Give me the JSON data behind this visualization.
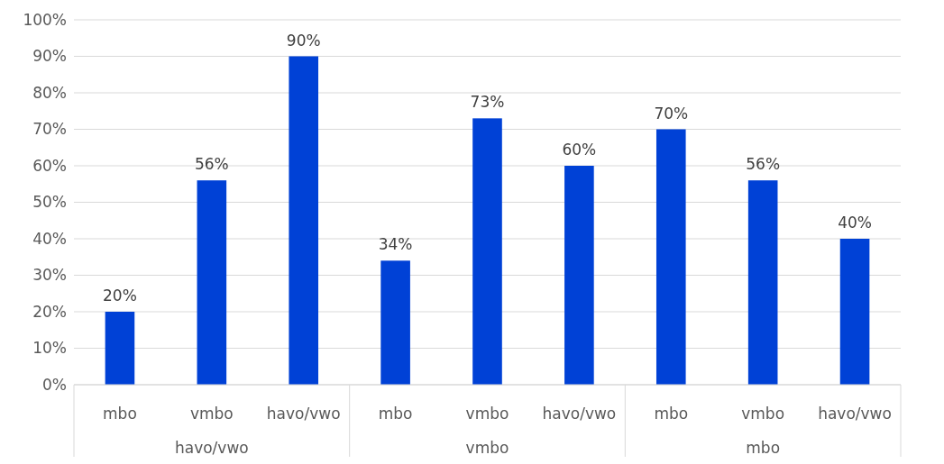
{
  "chart_data": {
    "type": "bar",
    "categories": [
      "mbo",
      "vmbo",
      "havo/vwo",
      "mbo",
      "vmbo",
      "havo/vwo",
      "mbo",
      "vmbo",
      "havo/vwo"
    ],
    "values": [
      20,
      56,
      90,
      34,
      73,
      60,
      70,
      56,
      40
    ],
    "color": "#0041d6",
    "ylim": [
      0,
      100
    ],
    "yticks": [
      {
        "value": 0,
        "label": "0%"
      },
      {
        "value": 10,
        "label": "10%"
      },
      {
        "value": 20,
        "label": "20%"
      },
      {
        "value": 30,
        "label": "30%"
      },
      {
        "value": 40,
        "label": "40%"
      },
      {
        "value": 50,
        "label": "50%"
      },
      {
        "value": 60,
        "label": "60%"
      },
      {
        "value": 70,
        "label": "70%"
      },
      {
        "value": 80,
        "label": "80%"
      },
      {
        "value": 90,
        "label": "90%"
      },
      {
        "value": 100,
        "label": "100%"
      }
    ],
    "value_labels": [
      "20%",
      "56%",
      "90%",
      "34%",
      "73%",
      "60%",
      "70%",
      "56%",
      "40%"
    ],
    "annotations": [
      "havo/vwo",
      "vmbo",
      "mbo"
    ],
    "grid": "y"
  }
}
